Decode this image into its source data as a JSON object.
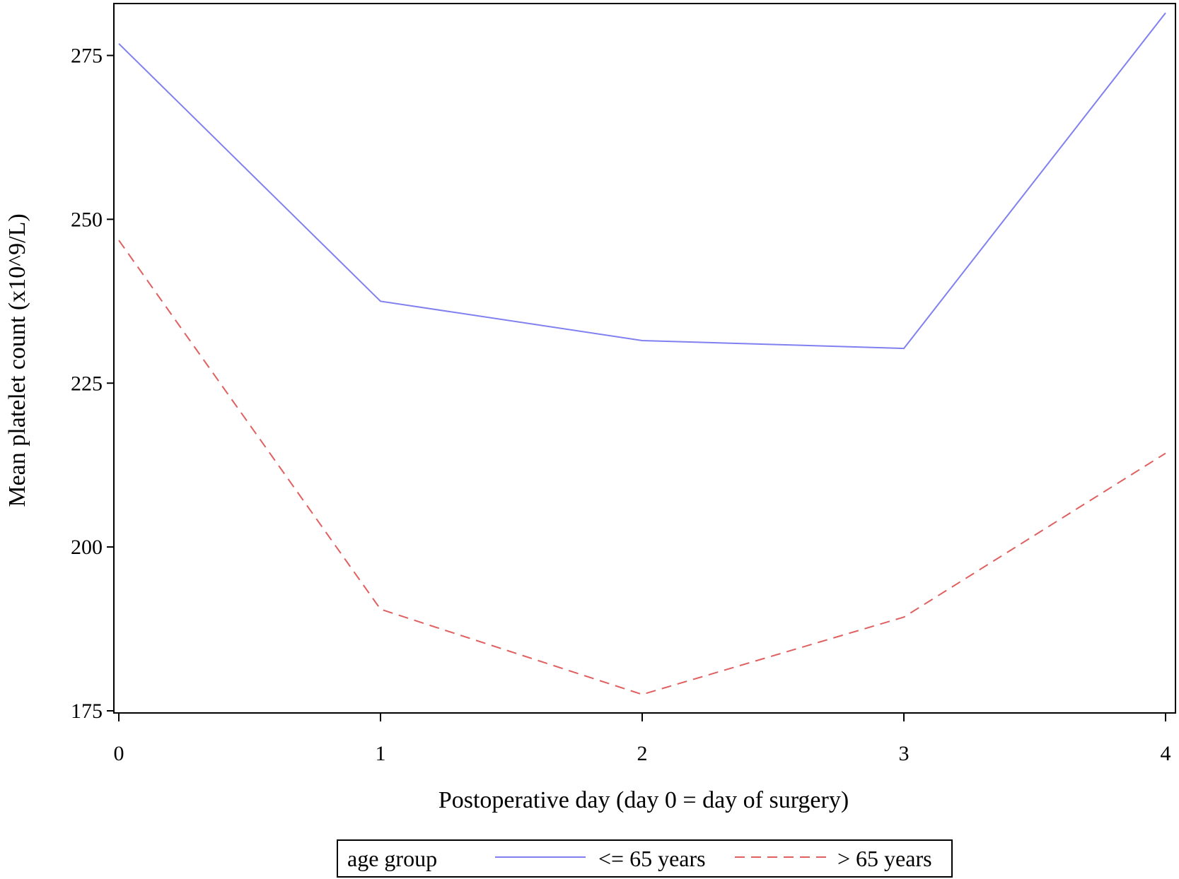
{
  "chart_data": {
    "type": "line",
    "xlabel": "Postoperative day (day 0 = day of surgery)",
    "ylabel": "Mean platelet count (x10^9/L)",
    "x": [
      0,
      1,
      2,
      3,
      4
    ],
    "xticks": [
      "0",
      "1",
      "2",
      "3",
      "4"
    ],
    "xlim": [
      0,
      4
    ],
    "yticks": [
      "175",
      "200",
      "225",
      "250",
      "275"
    ],
    "ylim": [
      175,
      282
    ],
    "grid": false,
    "legend": {
      "title": "age group",
      "position": "bottom-center"
    },
    "series": [
      {
        "name": "<= 65 years",
        "values": [
          276.8,
          237.5,
          231.5,
          230.3,
          281.5
        ],
        "color": "#8080f0",
        "style": "solid"
      },
      {
        "name": "> 65 years",
        "values": [
          246.8,
          190.5,
          177.5,
          189.3,
          214.3
        ],
        "color": "#e06060",
        "style": "dashed"
      }
    ]
  }
}
